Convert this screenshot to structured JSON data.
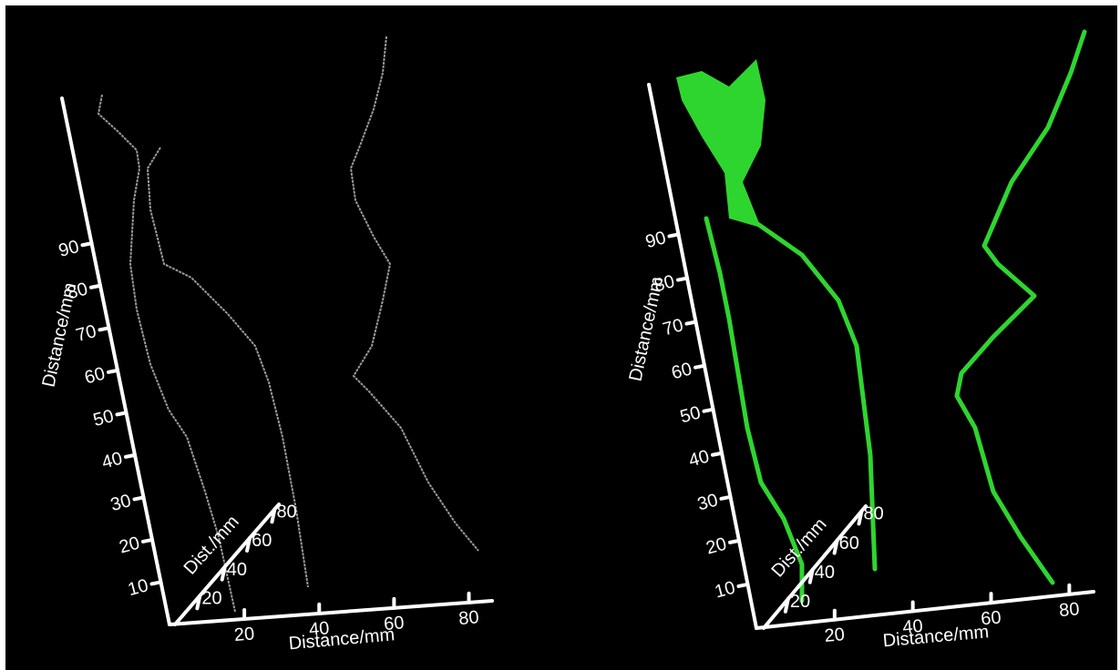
{
  "panels": [
    {
      "vertical_axis": {
        "label": "Distance/mm",
        "ticks": [
          "10",
          "20",
          "30",
          "40",
          "50",
          "60",
          "70",
          "80",
          "90"
        ]
      },
      "horizontal_axis": {
        "label": "Distance/mm",
        "ticks": [
          "20",
          "40",
          "60",
          "80"
        ]
      },
      "depth_axis": {
        "label": "Dist./mm",
        "ticks": [
          "20",
          "40",
          "60",
          "80"
        ]
      }
    },
    {
      "vertical_axis": {
        "label": "Distance/mm",
        "ticks": [
          "10",
          "20",
          "30",
          "40",
          "50",
          "60",
          "70",
          "80",
          "90"
        ]
      },
      "horizontal_axis": {
        "label": "Distance/mm",
        "ticks": [
          "20",
          "40",
          "60",
          "80"
        ]
      },
      "depth_axis": {
        "label": "Dist./mm",
        "ticks": [
          "20",
          "40",
          "60",
          "80"
        ]
      }
    }
  ]
}
